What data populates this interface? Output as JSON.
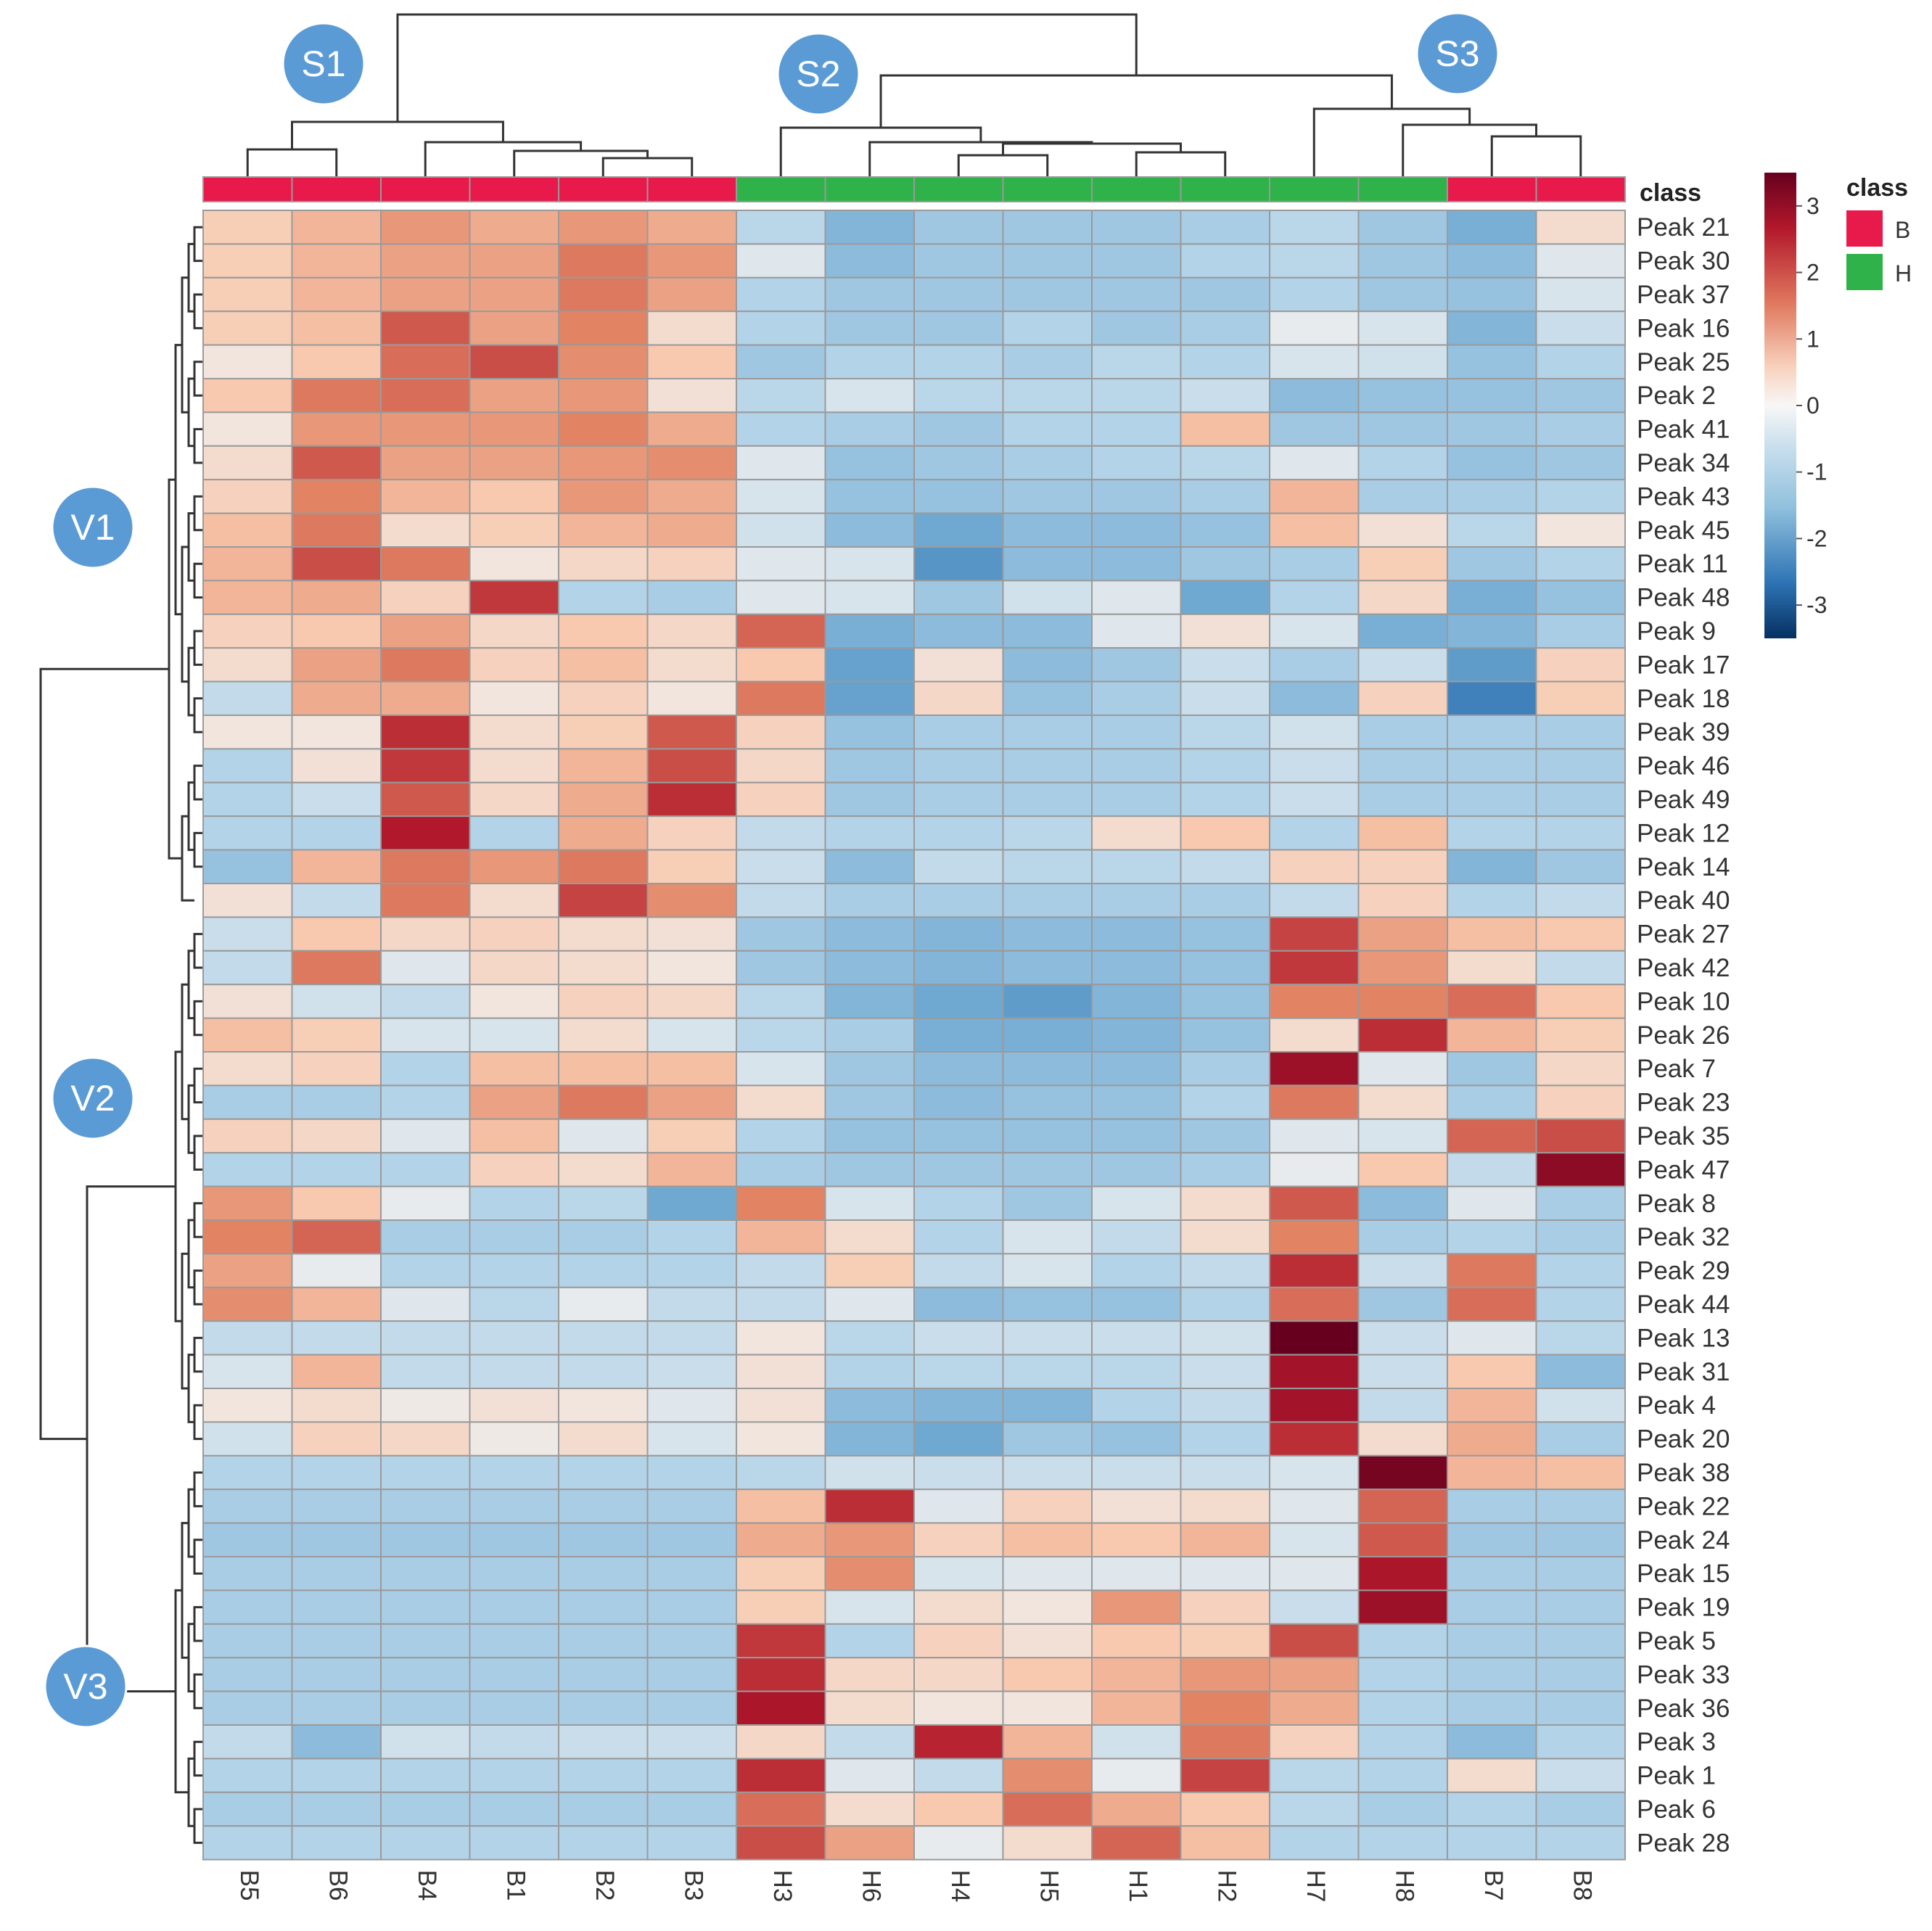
{
  "chart_data": {
    "type": "heatmap",
    "title": "",
    "columns": [
      "B5",
      "B6",
      "B4",
      "B1",
      "B2",
      "B3",
      "H3",
      "H6",
      "H4",
      "H5",
      "H1",
      "H2",
      "H7",
      "H8",
      "B7",
      "B8"
    ],
    "column_class": [
      "B",
      "B",
      "B",
      "B",
      "B",
      "B",
      "H",
      "H",
      "H",
      "H",
      "H",
      "H",
      "H",
      "H",
      "B",
      "B"
    ],
    "rows": [
      "Peak 21",
      "Peak 30",
      "Peak 37",
      "Peak 16",
      "Peak 25",
      "Peak 2",
      "Peak 41",
      "Peak 34",
      "Peak 43",
      "Peak 45",
      "Peak 11",
      "Peak 48",
      "Peak 9",
      "Peak 17",
      "Peak 18",
      "Peak 39",
      "Peak 46",
      "Peak 49",
      "Peak 12",
      "Peak 14",
      "Peak 40",
      "Peak 27",
      "Peak 42",
      "Peak 10",
      "Peak 26",
      "Peak 7",
      "Peak 23",
      "Peak 35",
      "Peak 47",
      "Peak 8",
      "Peak 32",
      "Peak 29",
      "Peak 44",
      "Peak 13",
      "Peak 31",
      "Peak 4",
      "Peak 20",
      "Peak 38",
      "Peak 22",
      "Peak 24",
      "Peak 15",
      "Peak 19",
      "Peak 5",
      "Peak 33",
      "Peak 36",
      "Peak 3",
      "Peak 1",
      "Peak 6",
      "Peak 28"
    ],
    "values": [
      [
        0.7,
        1.0,
        1.3,
        1.1,
        1.3,
        1.1,
        -0.7,
        -1.3,
        -1.0,
        -1.0,
        -1.0,
        -0.9,
        -0.7,
        -1.0,
        -1.4,
        0.4
      ],
      [
        0.7,
        1.0,
        1.2,
        1.2,
        1.6,
        1.3,
        -0.2,
        -1.2,
        -1.0,
        -1.0,
        -1.0,
        -0.8,
        -0.7,
        -1.0,
        -1.2,
        -0.2
      ],
      [
        0.7,
        1.0,
        1.2,
        1.2,
        1.6,
        1.2,
        -0.8,
        -1.0,
        -1.0,
        -1.0,
        -1.0,
        -1.0,
        -0.8,
        -1.0,
        -1.1,
        -0.3
      ],
      [
        0.7,
        0.9,
        1.9,
        1.2,
        1.5,
        0.4,
        -0.8,
        -1.0,
        -1.0,
        -0.8,
        -1.0,
        -0.9,
        -0.1,
        -0.3,
        -1.3,
        -0.5
      ],
      [
        0.2,
        0.8,
        1.7,
        2.0,
        1.4,
        0.8,
        -1.0,
        -0.8,
        -0.8,
        -0.9,
        -0.7,
        -0.8,
        -0.3,
        -0.4,
        -1.1,
        -0.8
      ],
      [
        0.8,
        1.6,
        1.7,
        1.2,
        1.3,
        0.3,
        -0.7,
        -0.3,
        -0.7,
        -0.7,
        -0.7,
        -0.5,
        -1.2,
        -1.1,
        -1.1,
        -1.0
      ],
      [
        0.2,
        1.3,
        1.3,
        1.3,
        1.5,
        1.1,
        -0.8,
        -0.9,
        -1.0,
        -0.8,
        -0.8,
        0.9,
        -1.0,
        -1.0,
        -1.0,
        -0.9
      ],
      [
        0.4,
        1.9,
        1.2,
        1.2,
        1.3,
        1.4,
        -0.2,
        -1.1,
        -1.0,
        -0.9,
        -0.8,
        -0.7,
        -0.2,
        -0.8,
        -1.1,
        -1.0
      ],
      [
        0.6,
        1.5,
        1.0,
        0.8,
        1.3,
        1.1,
        -0.3,
        -1.1,
        -1.1,
        -1.0,
        -1.0,
        -0.9,
        1.0,
        -0.9,
        -0.9,
        -0.8
      ],
      [
        0.9,
        1.6,
        0.4,
        0.7,
        1.0,
        1.1,
        -0.4,
        -1.2,
        -1.5,
        -1.2,
        -1.2,
        -1.1,
        0.9,
        0.3,
        -0.7,
        0.2
      ],
      [
        1.0,
        2.0,
        1.6,
        0.2,
        0.5,
        0.6,
        -0.2,
        -0.3,
        -1.8,
        -1.2,
        -1.2,
        -1.0,
        -0.9,
        0.7,
        -1.0,
        -0.8
      ],
      [
        1.0,
        1.1,
        0.6,
        2.2,
        -0.8,
        -0.9,
        -0.2,
        -0.3,
        -1.0,
        -0.4,
        -0.2,
        -1.5,
        -0.8,
        0.5,
        -1.4,
        -1.1
      ],
      [
        0.6,
        0.8,
        1.2,
        0.5,
        0.8,
        0.5,
        1.8,
        -1.4,
        -1.2,
        -1.2,
        -0.2,
        0.3,
        -0.3,
        -1.4,
        -1.3,
        -0.9
      ],
      [
        0.4,
        1.2,
        1.6,
        0.6,
        0.9,
        0.4,
        0.8,
        -1.6,
        0.3,
        -1.2,
        -1.0,
        -0.5,
        -0.9,
        -0.5,
        -1.7,
        0.6
      ],
      [
        -0.6,
        1.1,
        1.1,
        0.2,
        0.6,
        0.2,
        1.6,
        -1.6,
        0.5,
        -1.1,
        -0.9,
        -0.5,
        -1.2,
        0.6,
        -2.1,
        0.7
      ],
      [
        0.2,
        0.2,
        2.3,
        0.4,
        0.7,
        1.9,
        0.6,
        -1.1,
        -0.9,
        -0.9,
        -0.9,
        -0.7,
        -0.4,
        -0.9,
        -0.9,
        -0.9
      ],
      [
        -0.8,
        0.3,
        2.2,
        0.4,
        1.0,
        2.0,
        0.5,
        -1.0,
        -0.9,
        -0.9,
        -0.9,
        -0.8,
        -0.5,
        -0.9,
        -0.9,
        -0.9
      ],
      [
        -0.8,
        -0.5,
        1.9,
        0.5,
        1.1,
        2.3,
        0.6,
        -1.0,
        -0.9,
        -0.9,
        -0.9,
        -0.8,
        -0.5,
        -0.9,
        -0.9,
        -0.9
      ],
      [
        -0.8,
        -0.8,
        2.5,
        -0.8,
        1.1,
        0.6,
        -0.6,
        -0.8,
        -0.8,
        -0.7,
        0.4,
        0.8,
        -0.8,
        0.9,
        -0.8,
        -0.8
      ],
      [
        -1.1,
        1.0,
        1.6,
        1.3,
        1.6,
        0.7,
        -0.5,
        -1.2,
        -0.6,
        -0.7,
        -0.7,
        -0.6,
        0.6,
        0.6,
        -1.3,
        -1.0
      ],
      [
        0.3,
        -0.6,
        1.6,
        0.4,
        2.1,
        1.4,
        -0.6,
        -0.9,
        -0.9,
        -0.9,
        -0.9,
        -0.9,
        -0.6,
        0.6,
        -0.8,
        -0.6
      ],
      [
        -0.5,
        0.8,
        0.5,
        0.6,
        0.4,
        0.3,
        -1.0,
        -1.2,
        -1.3,
        -1.2,
        -1.2,
        -1.1,
        2.1,
        1.2,
        0.9,
        0.8
      ],
      [
        -0.6,
        1.6,
        -0.2,
        0.5,
        0.4,
        0.2,
        -1.0,
        -1.2,
        -1.3,
        -1.2,
        -1.2,
        -1.1,
        2.2,
        1.3,
        0.4,
        -0.6
      ],
      [
        0.3,
        -0.4,
        -0.6,
        0.2,
        0.6,
        0.5,
        -0.7,
        -1.3,
        -1.5,
        -1.7,
        -1.3,
        -1.1,
        1.5,
        1.5,
        1.7,
        0.8
      ],
      [
        0.9,
        0.7,
        -0.3,
        -0.3,
        0.4,
        -0.3,
        -0.7,
        -0.9,
        -1.4,
        -1.4,
        -1.3,
        -1.1,
        0.4,
        2.3,
        1.0,
        0.7
      ],
      [
        0.4,
        0.6,
        -0.8,
        0.9,
        0.9,
        0.9,
        -0.3,
        -1.0,
        -1.2,
        -1.2,
        -1.2,
        -0.9,
        2.8,
        -0.2,
        -1.0,
        0.5
      ],
      [
        -0.9,
        -0.9,
        -0.8,
        1.2,
        1.6,
        1.2,
        0.4,
        -1.0,
        -1.2,
        -1.1,
        -1.1,
        -0.8,
        1.6,
        0.4,
        -0.9,
        0.6
      ],
      [
        0.6,
        0.5,
        -0.2,
        0.9,
        -0.2,
        0.7,
        -0.8,
        -1.1,
        -1.1,
        -1.1,
        -1.1,
        -1.0,
        -0.2,
        -0.3,
        1.8,
        2.0
      ],
      [
        -0.8,
        -0.8,
        -0.8,
        0.6,
        0.4,
        1.0,
        -0.9,
        -1.0,
        -1.0,
        -1.0,
        -1.0,
        -0.9,
        -0.1,
        0.8,
        -0.6,
        3.0
      ],
      [
        1.3,
        0.8,
        -0.1,
        -0.8,
        -0.7,
        -1.5,
        1.5,
        -0.3,
        -0.8,
        -1.0,
        -0.3,
        0.4,
        1.9,
        -1.2,
        -0.2,
        -0.9
      ],
      [
        1.5,
        1.8,
        -0.9,
        -0.9,
        -0.9,
        -0.8,
        1.0,
        0.4,
        -0.8,
        -0.3,
        -0.6,
        0.4,
        1.5,
        -0.9,
        -0.8,
        -0.9
      ],
      [
        1.2,
        -0.1,
        -0.8,
        -0.8,
        -0.8,
        -0.8,
        -0.6,
        0.7,
        -0.6,
        -0.3,
        -0.8,
        -0.6,
        2.3,
        -0.5,
        1.6,
        -0.8
      ],
      [
        1.4,
        1.0,
        -0.2,
        -0.7,
        -0.1,
        -0.6,
        -0.6,
        -0.2,
        -1.2,
        -1.1,
        -1.1,
        -0.8,
        1.7,
        -1.0,
        1.7,
        -0.8
      ],
      [
        -0.6,
        -0.6,
        -0.6,
        -0.6,
        -0.6,
        -0.6,
        0.2,
        -0.7,
        -0.5,
        -0.5,
        -0.5,
        -0.4,
        3.5,
        -0.5,
        -0.2,
        -0.7
      ],
      [
        -0.3,
        1.0,
        -0.6,
        -0.6,
        -0.6,
        -0.5,
        0.3,
        -0.8,
        -0.7,
        -0.7,
        -0.7,
        -0.5,
        2.7,
        -0.5,
        0.8,
        -1.2
      ],
      [
        0.2,
        0.4,
        0.1,
        0.3,
        0.2,
        -0.2,
        0.3,
        -1.2,
        -1.3,
        -1.3,
        -0.8,
        -0.6,
        2.7,
        -0.6,
        1.0,
        -0.4
      ],
      [
        -0.4,
        0.6,
        0.5,
        0.1,
        0.4,
        -0.3,
        0.2,
        -1.3,
        -1.5,
        -1.0,
        -1.1,
        -0.8,
        2.3,
        0.4,
        1.1,
        -0.9
      ],
      [
        -0.8,
        -0.8,
        -0.8,
        -0.8,
        -0.8,
        -0.8,
        -0.7,
        -0.4,
        -0.5,
        -0.5,
        -0.5,
        -0.5,
        -0.3,
        3.3,
        1.0,
        0.9
      ],
      [
        -0.9,
        -0.9,
        -0.9,
        -0.9,
        -0.9,
        -0.9,
        0.9,
        2.3,
        -0.2,
        0.6,
        0.3,
        0.4,
        -0.2,
        1.8,
        -0.9,
        -0.9
      ],
      [
        -1.0,
        -1.0,
        -1.0,
        -1.0,
        -1.0,
        -1.0,
        1.1,
        1.3,
        0.6,
        0.9,
        0.8,
        1.0,
        -0.3,
        1.9,
        -1.0,
        -1.0
      ],
      [
        -0.9,
        -0.9,
        -0.9,
        -0.9,
        -0.9,
        -0.9,
        0.7,
        1.4,
        -0.3,
        -0.2,
        -0.2,
        -0.2,
        -0.2,
        2.6,
        -0.9,
        -0.9
      ],
      [
        -0.9,
        -0.9,
        -0.9,
        -0.9,
        -0.9,
        -0.9,
        0.7,
        -0.3,
        0.4,
        0.2,
        1.3,
        0.6,
        -0.5,
        2.8,
        -0.9,
        -0.9
      ],
      [
        -0.9,
        -0.9,
        -0.9,
        -0.9,
        -0.9,
        -0.9,
        2.2,
        -0.8,
        0.6,
        0.3,
        0.8,
        0.7,
        2.0,
        -0.8,
        -0.9,
        -0.9
      ],
      [
        -0.9,
        -0.9,
        -0.9,
        -0.9,
        -0.9,
        -0.9,
        2.3,
        0.5,
        0.5,
        0.8,
        1.0,
        1.3,
        1.2,
        -0.8,
        -0.9,
        -0.9
      ],
      [
        -0.9,
        -0.9,
        -0.9,
        -0.9,
        -0.9,
        -0.9,
        2.6,
        0.4,
        0.2,
        0.2,
        1.0,
        1.5,
        1.1,
        -0.8,
        -0.9,
        -0.9
      ],
      [
        -0.6,
        -1.2,
        -0.4,
        -0.6,
        -0.5,
        -0.5,
        0.5,
        -0.6,
        2.4,
        1.0,
        -0.4,
        1.6,
        0.6,
        -0.8,
        -1.2,
        -0.8
      ],
      [
        -0.8,
        -0.8,
        -0.8,
        -0.8,
        -0.8,
        -0.8,
        2.3,
        -0.2,
        -0.6,
        1.4,
        -0.1,
        2.1,
        -0.7,
        -0.8,
        0.4,
        -0.5
      ],
      [
        -0.9,
        -0.9,
        -0.9,
        -0.9,
        -0.9,
        -0.9,
        1.7,
        0.4,
        0.8,
        1.7,
        1.1,
        0.8,
        -0.7,
        -0.9,
        -0.8,
        -0.9
      ],
      [
        -0.8,
        -0.8,
        -0.8,
        -0.8,
        -0.8,
        -0.8,
        2.0,
        1.2,
        -0.1,
        0.4,
        1.8,
        0.9,
        -0.8,
        -0.8,
        -0.8,
        -0.8
      ]
    ],
    "color_scale": {
      "min": -3.5,
      "max": 3.5,
      "low": "#053061",
      "mid": "#f7f7f7",
      "high": "#67001f",
      "ticks": [
        3,
        2,
        1,
        0,
        -1,
        -2,
        -3
      ]
    },
    "class_legend": {
      "title": "class",
      "items": [
        {
          "label": "B",
          "color": "#e8194b"
        },
        {
          "label": "H",
          "color": "#2fb24a"
        }
      ]
    },
    "cluster_annotations": {
      "samples": [
        "S1",
        "S2",
        "S3"
      ],
      "variables": [
        "V1",
        "V2",
        "V3"
      ]
    },
    "dendrograms": "hierarchical clustering on rows and columns"
  }
}
